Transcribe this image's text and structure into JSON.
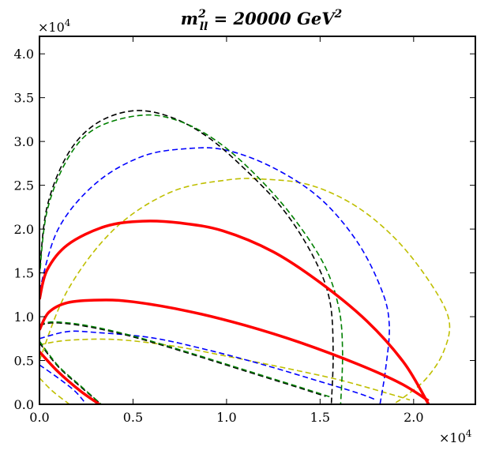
{
  "chart_data": {
    "type": "line",
    "title": "m_ll^2 = 20000 GeV^2",
    "title_parts": {
      "m": "m",
      "sup": "2",
      "sub": "ll",
      "rest": " = 20000 ",
      "unit": "GeV",
      "unit_sup": "2"
    },
    "xlabel": "",
    "ylabel": "",
    "x_multiplier": "×10^4",
    "y_multiplier": "×10^4",
    "x_multiplier_parts": {
      "base": "×10",
      "exp": "4"
    },
    "y_multiplier_parts": {
      "base": "×10",
      "exp": "4"
    },
    "xlim": [
      0,
      23300
    ],
    "ylim": [
      0,
      42000
    ],
    "xticks": [
      0,
      5000,
      10000,
      15000,
      20000
    ],
    "xtick_labels": [
      "0.0",
      "0.5",
      "1.0",
      "1.5",
      "2.0"
    ],
    "yticks": [
      0,
      5000,
      10000,
      15000,
      20000,
      25000,
      30000,
      35000,
      40000
    ],
    "ytick_labels": [
      "0.0",
      "0.5",
      "1.0",
      "1.5",
      "2.0",
      "2.5",
      "3.0",
      "3.5",
      "4.0"
    ],
    "grid": false,
    "series": [
      {
        "name": "yellow-outer",
        "color": "#bfbf00",
        "style": "dashed",
        "width": 1.6,
        "points": [
          [
            0,
            5000
          ],
          [
            1500,
            13000
          ],
          [
            4000,
            20000
          ],
          [
            7000,
            24200
          ],
          [
            10000,
            25600
          ],
          [
            12000,
            25700
          ],
          [
            14500,
            25000
          ],
          [
            17000,
            22500
          ],
          [
            19200,
            18500
          ],
          [
            21000,
            13500
          ],
          [
            21900,
            9500
          ],
          [
            21600,
            6000
          ],
          [
            20700,
            3000
          ],
          [
            19600,
            1000
          ],
          [
            18900,
            0
          ]
        ]
      },
      {
        "name": "yellow-inner",
        "color": "#bfbf00",
        "style": "dashed",
        "width": 1.6,
        "points": [
          [
            0,
            6800
          ],
          [
            1500,
            7300
          ],
          [
            4000,
            7400
          ],
          [
            7000,
            6700
          ],
          [
            10000,
            5500
          ],
          [
            13000,
            4200
          ],
          [
            16000,
            2800
          ],
          [
            18700,
            1200
          ],
          [
            19800,
            500
          ]
        ]
      },
      {
        "name": "yellow-low",
        "color": "#bfbf00",
        "style": "dashed",
        "width": 1.6,
        "points": [
          [
            0,
            3000
          ],
          [
            700,
            1500
          ],
          [
            1600,
            0
          ]
        ]
      },
      {
        "name": "blue-outer",
        "color": "#0000ff",
        "style": "dashed",
        "width": 1.6,
        "points": [
          [
            0,
            13000
          ],
          [
            1000,
            20000
          ],
          [
            3000,
            25200
          ],
          [
            5500,
            28300
          ],
          [
            8000,
            29200
          ],
          [
            10000,
            29000
          ],
          [
            12500,
            27000
          ],
          [
            15000,
            23500
          ],
          [
            17000,
            18500
          ],
          [
            18300,
            13000
          ],
          [
            18700,
            9000
          ],
          [
            18500,
            4000
          ],
          [
            18200,
            0
          ]
        ]
      },
      {
        "name": "blue-inner",
        "color": "#0000ff",
        "style": "dashed",
        "width": 1.6,
        "points": [
          [
            0,
            7500
          ],
          [
            1500,
            8300
          ],
          [
            3000,
            8200
          ],
          [
            6000,
            7600
          ],
          [
            9000,
            6200
          ],
          [
            12000,
            4500
          ],
          [
            15000,
            2600
          ],
          [
            17000,
            1300
          ],
          [
            18000,
            500
          ]
        ]
      },
      {
        "name": "blue-low",
        "color": "#0000ff",
        "style": "dashed",
        "width": 1.6,
        "points": [
          [
            0,
            4500
          ],
          [
            1000,
            3000
          ],
          [
            1900,
            1500
          ],
          [
            2500,
            0
          ]
        ]
      },
      {
        "name": "black-outer",
        "color": "#000000",
        "style": "dashed",
        "width": 1.6,
        "points": [
          [
            0,
            15000
          ],
          [
            400,
            22500
          ],
          [
            1500,
            28500
          ],
          [
            3000,
            32000
          ],
          [
            5000,
            33500
          ],
          [
            7000,
            32800
          ],
          [
            9000,
            30500
          ],
          [
            11000,
            26800
          ],
          [
            13000,
            22300
          ],
          [
            14600,
            17000
          ],
          [
            15500,
            12000
          ],
          [
            15700,
            6000
          ],
          [
            15600,
            0
          ]
        ]
      },
      {
        "name": "black-inner",
        "color": "#000000",
        "style": "dashed",
        "width": 1.6,
        "points": [
          [
            0,
            9000
          ],
          [
            800,
            9300
          ],
          [
            2500,
            8900
          ],
          [
            5000,
            7700
          ],
          [
            8000,
            5800
          ],
          [
            11000,
            3800
          ],
          [
            14000,
            1800
          ],
          [
            15300,
            900
          ]
        ]
      },
      {
        "name": "black-low",
        "color": "#000000",
        "style": "dashed",
        "width": 1.6,
        "points": [
          [
            0,
            7000
          ],
          [
            1000,
            4300
          ],
          [
            2200,
            2000
          ],
          [
            3300,
            0
          ]
        ]
      },
      {
        "name": "green-outer",
        "color": "#008000",
        "style": "dashed",
        "width": 1.6,
        "points": [
          [
            0,
            14500
          ],
          [
            400,
            22000
          ],
          [
            1500,
            28000
          ],
          [
            3000,
            31500
          ],
          [
            5500,
            33000
          ],
          [
            7500,
            32300
          ],
          [
            9500,
            30000
          ],
          [
            11500,
            26300
          ],
          [
            13500,
            21500
          ],
          [
            15200,
            16000
          ],
          [
            16000,
            11000
          ],
          [
            16200,
            6000
          ],
          [
            16100,
            0
          ]
        ]
      },
      {
        "name": "green-inner",
        "color": "#008000",
        "style": "dashed",
        "width": 1.6,
        "points": [
          [
            0,
            9100
          ],
          [
            800,
            9400
          ],
          [
            2500,
            9000
          ],
          [
            5000,
            7800
          ],
          [
            8000,
            5900
          ],
          [
            11000,
            3900
          ],
          [
            14000,
            1900
          ],
          [
            15600,
            800
          ]
        ]
      },
      {
        "name": "green-low",
        "color": "#008000",
        "style": "dashed",
        "width": 1.6,
        "points": [
          [
            0,
            7200
          ],
          [
            1000,
            4400
          ],
          [
            2200,
            2100
          ],
          [
            3300,
            0
          ]
        ]
      },
      {
        "name": "red-outer",
        "color": "#ff0000",
        "style": "solid",
        "width": 3.5,
        "points": [
          [
            0,
            12000
          ],
          [
            400,
            15300
          ],
          [
            1500,
            18200
          ],
          [
            3500,
            20300
          ],
          [
            5500,
            20900
          ],
          [
            7500,
            20700
          ],
          [
            9800,
            19800
          ],
          [
            12500,
            17400
          ],
          [
            15000,
            13900
          ],
          [
            17500,
            9500
          ],
          [
            19500,
            4700
          ],
          [
            20800,
            0
          ]
        ]
      },
      {
        "name": "red-inner",
        "color": "#ff0000",
        "style": "solid",
        "width": 3.5,
        "points": [
          [
            0,
            8500
          ],
          [
            500,
            10500
          ],
          [
            1500,
            11600
          ],
          [
            3200,
            11900
          ],
          [
            5000,
            11700
          ],
          [
            8000,
            10600
          ],
          [
            11000,
            9000
          ],
          [
            14000,
            7000
          ],
          [
            17000,
            4600
          ],
          [
            19300,
            2400
          ],
          [
            20800,
            400
          ]
        ]
      },
      {
        "name": "red-low",
        "color": "#ff0000",
        "style": "solid",
        "width": 3.5,
        "points": [
          [
            0,
            6000
          ],
          [
            1000,
            3700
          ],
          [
            2200,
            1500
          ],
          [
            3200,
            0
          ]
        ]
      }
    ]
  }
}
